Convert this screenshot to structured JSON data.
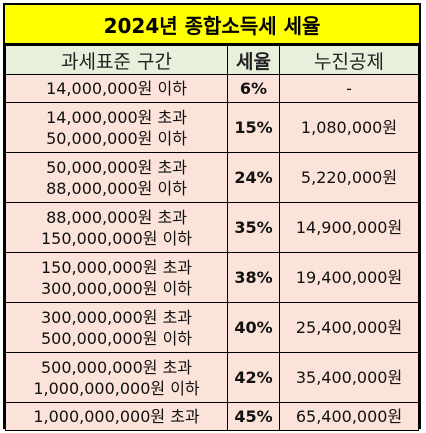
{
  "title": "2024년 종합소득세 세율",
  "headers": {
    "bracket": "과세표준 구간",
    "rate": "세율",
    "deduction": "누진공제"
  },
  "rows": [
    {
      "line1": "14,000,000원 이하",
      "line2": "",
      "rate": "6%",
      "deduction": "-"
    },
    {
      "line1": "14,000,000원 초과",
      "line2": "50,000,000원 이하",
      "rate": "15%",
      "deduction": "1,080,000원"
    },
    {
      "line1": "50,000,000원 초과",
      "line2": "88,000,000원 이하",
      "rate": "24%",
      "deduction": "5,220,000원"
    },
    {
      "line1": "88,000,000원 초과",
      "line2": "150,000,000원 이하",
      "rate": "35%",
      "deduction": "14,900,000원"
    },
    {
      "line1": "150,000,000원 초과",
      "line2": "300,000,000원 이하",
      "rate": "38%",
      "deduction": "19,400,000원"
    },
    {
      "line1": "300,000,000원 초과",
      "line2": "500,000,000원 이하",
      "rate": "40%",
      "deduction": "25,400,000원"
    },
    {
      "line1": "500,000,000원 초과",
      "line2": "1,000,000,000원 이하",
      "rate": "42%",
      "deduction": "35,400,000원"
    },
    {
      "line1": "1,000,000,000원 초과",
      "line2": "",
      "rate": "45%",
      "deduction": "65,400,000원"
    }
  ],
  "colors": {
    "title_bg": "#ffff00",
    "header_bg": "#e8f0dc",
    "cell_bg": "#fbe3d9",
    "border": "#000000"
  }
}
